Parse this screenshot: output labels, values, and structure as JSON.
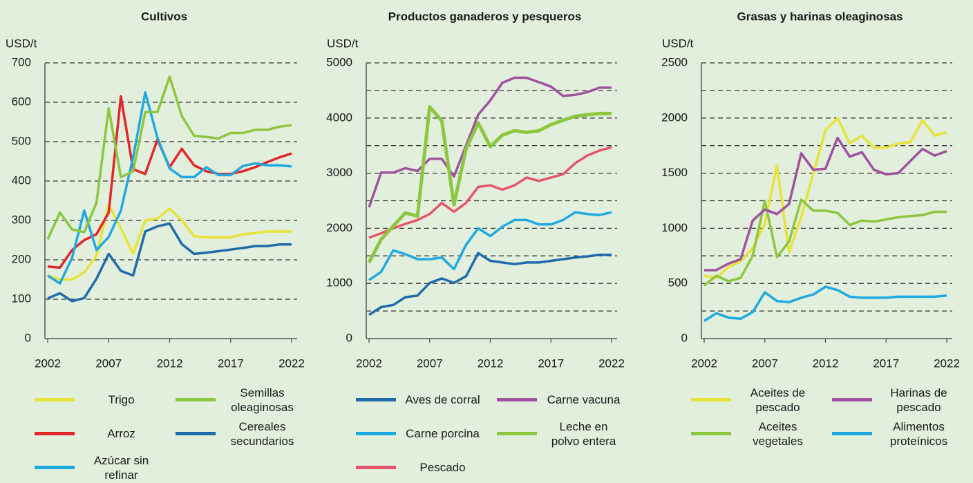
{
  "chart_data": [
    {
      "type": "line",
      "title": "Cultivos",
      "ylabel": "USD/t",
      "x": [
        2002,
        2003,
        2004,
        2005,
        2006,
        2007,
        2008,
        2009,
        2010,
        2011,
        2012,
        2013,
        2014,
        2015,
        2016,
        2017,
        2018,
        2019,
        2020,
        2021,
        2022
      ],
      "xlim": [
        2002,
        2022
      ],
      "xticks": [
        2002,
        2007,
        2012,
        2017,
        2022
      ],
      "ylim": [
        0,
        700
      ],
      "yticks": [
        0,
        100,
        200,
        300,
        400,
        500,
        600,
        700
      ],
      "ygrid": [
        100,
        200,
        300,
        400,
        500,
        600,
        700
      ],
      "grid": true,
      "series": [
        {
          "name": "Trigo",
          "color": "#e8e337",
          "values": [
            160,
            150,
            150,
            168,
            210,
            340,
            280,
            215,
            300,
            305,
            330,
            300,
            260,
            257,
            257,
            257,
            265,
            268,
            272,
            272,
            272
          ]
        },
        {
          "name": "Arroz",
          "color": "#e3262a",
          "values": [
            183,
            180,
            225,
            250,
            265,
            320,
            615,
            430,
            418,
            505,
            435,
            482,
            440,
            425,
            418,
            418,
            425,
            435,
            448,
            460,
            470
          ]
        },
        {
          "name": "Azúcar sin refinar",
          "color": "#1fa9e1",
          "values": [
            160,
            140,
            205,
            325,
            225,
            258,
            325,
            460,
            625,
            510,
            432,
            410,
            410,
            435,
            415,
            415,
            438,
            445,
            440,
            440,
            437
          ]
        },
        {
          "name": "Semillas oleaginosas",
          "color": "#8dc63f",
          "values": [
            252,
            320,
            277,
            270,
            345,
            585,
            410,
            425,
            575,
            575,
            665,
            565,
            515,
            512,
            508,
            522,
            522,
            530,
            530,
            538,
            542
          ]
        },
        {
          "name": "Cereales secundarios",
          "color": "#1f6bab",
          "values": [
            102,
            115,
            95,
            103,
            152,
            215,
            172,
            160,
            272,
            285,
            292,
            240,
            215,
            218,
            222,
            226,
            230,
            235,
            235,
            239,
            239
          ]
        }
      ]
    },
    {
      "type": "line",
      "title": "Productos ganaderos y pesqueros",
      "ylabel": "USD/t",
      "x": [
        2002,
        2003,
        2004,
        2005,
        2006,
        2007,
        2008,
        2009,
        2010,
        2011,
        2012,
        2013,
        2014,
        2015,
        2016,
        2017,
        2018,
        2019,
        2020,
        2021,
        2022
      ],
      "xlim": [
        2002,
        2022
      ],
      "xticks": [
        2002,
        2007,
        2012,
        2017,
        2022
      ],
      "ylim": [
        0,
        5000
      ],
      "yticks": [
        0,
        1000,
        2000,
        3000,
        4000,
        5000
      ],
      "ygrid": [
        500,
        1000,
        1500,
        2000,
        2500,
        3000,
        3500,
        4000,
        4500,
        5000
      ],
      "grid": true,
      "series": [
        {
          "name": "Aves de corral",
          "color": "#1f6bab",
          "values": [
            430,
            570,
            610,
            750,
            780,
            1010,
            1090,
            1010,
            1130,
            1550,
            1410,
            1380,
            1350,
            1380,
            1380,
            1410,
            1440,
            1470,
            1490,
            1520,
            1520
          ]
        },
        {
          "name": "Carne porcina",
          "color": "#1fa9e1",
          "values": [
            1060,
            1210,
            1600,
            1530,
            1440,
            1440,
            1470,
            1260,
            1700,
            2000,
            1860,
            2030,
            2150,
            2150,
            2070,
            2070,
            2150,
            2290,
            2260,
            2240,
            2290
          ]
        },
        {
          "name": "Pescado",
          "color": "#e8546a",
          "values": [
            1830,
            1910,
            2000,
            2080,
            2150,
            2260,
            2460,
            2300,
            2460,
            2750,
            2780,
            2700,
            2780,
            2920,
            2860,
            2920,
            2980,
            3180,
            3320,
            3410,
            3470
          ]
        },
        {
          "name": "Carne vacuna",
          "color": "#a0519f",
          "values": [
            2380,
            3010,
            3010,
            3090,
            3040,
            3260,
            3260,
            2940,
            3500,
            4060,
            4320,
            4640,
            4730,
            4730,
            4650,
            4570,
            4400,
            4420,
            4470,
            4550,
            4550
          ]
        },
        {
          "name": "Leche en polvo entera",
          "color": "#8dc63f",
          "values": [
            1380,
            1800,
            2040,
            2280,
            2220,
            4200,
            3950,
            2430,
            3440,
            3910,
            3480,
            3690,
            3770,
            3740,
            3770,
            3880,
            3960,
            4030,
            4060,
            4080,
            4080
          ]
        }
      ]
    },
    {
      "type": "line",
      "title": "Grasas y harinas oleaginosas",
      "ylabel": "USD/t",
      "x": [
        2002,
        2003,
        2004,
        2005,
        2006,
        2007,
        2008,
        2009,
        2010,
        2011,
        2012,
        2013,
        2014,
        2015,
        2016,
        2017,
        2018,
        2019,
        2020,
        2021,
        2022
      ],
      "xlim": [
        2002,
        2022
      ],
      "xticks": [
        2002,
        2007,
        2012,
        2017,
        2022
      ],
      "ylim": [
        0,
        2500
      ],
      "yticks": [
        0,
        500,
        1000,
        1500,
        2000,
        2500
      ],
      "ygrid": [
        250,
        500,
        750,
        1000,
        1250,
        1500,
        1750,
        2000,
        2250,
        2500
      ],
      "grid": true,
      "series": [
        {
          "name": "Aceites de pescado",
          "color": "#e8e337",
          "values": [
            570,
            550,
            650,
            700,
            820,
            1040,
            1570,
            780,
            1100,
            1500,
            1890,
            2000,
            1770,
            1840,
            1730,
            1730,
            1770,
            1780,
            1980,
            1840,
            1870
          ]
        },
        {
          "name": "Aceites vegetales",
          "color": "#8dc63f",
          "values": [
            480,
            570,
            520,
            550,
            750,
            1250,
            740,
            880,
            1260,
            1160,
            1160,
            1140,
            1030,
            1070,
            1060,
            1080,
            1100,
            1110,
            1120,
            1150,
            1150
          ]
        },
        {
          "name": "Harinas de pescado",
          "color": "#a0519f",
          "values": [
            620,
            620,
            680,
            720,
            1070,
            1170,
            1130,
            1220,
            1680,
            1530,
            1540,
            1820,
            1650,
            1690,
            1530,
            1490,
            1500,
            1610,
            1720,
            1660,
            1700
          ]
        },
        {
          "name": "Alimentos proteínicos",
          "color": "#1fa9e1",
          "values": [
            160,
            230,
            190,
            180,
            240,
            420,
            340,
            330,
            370,
            400,
            470,
            440,
            380,
            370,
            370,
            370,
            380,
            380,
            380,
            380,
            390
          ]
        }
      ]
    }
  ]
}
